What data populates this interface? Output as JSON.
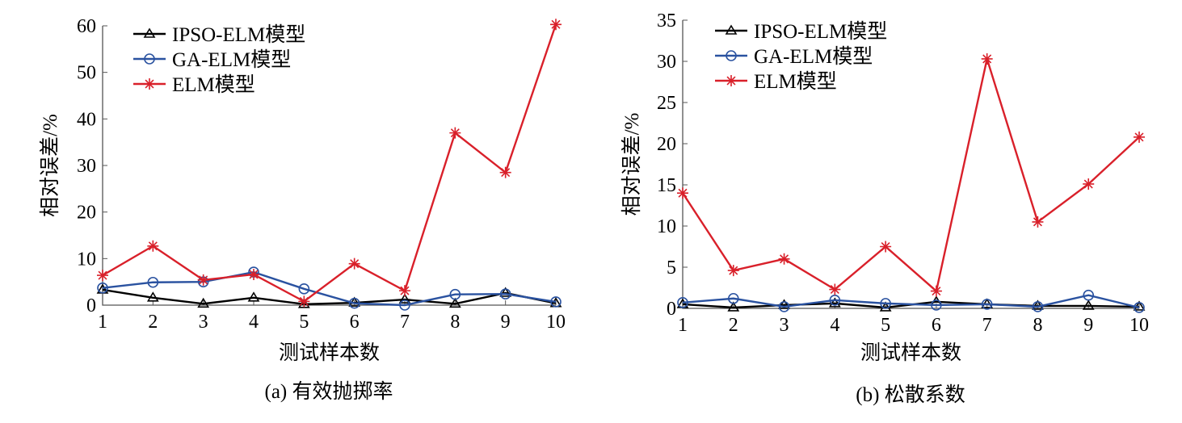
{
  "colors": {
    "IPSO-ELM模型": "#000000",
    "GA-ELM模型": "#2a52a0",
    "ELM模型": "#d9202a"
  },
  "chart_data": [
    {
      "type": "line",
      "caption": "(a)  有效抛掷率",
      "xlabel": "测试样本数",
      "ylabel": "相对误差/%",
      "x": [
        1,
        2,
        3,
        4,
        5,
        6,
        7,
        8,
        9,
        10
      ],
      "xticks": [
        "1",
        "2",
        "3",
        "4",
        "5",
        "6",
        "7",
        "8",
        "9",
        "10"
      ],
      "yticks": [
        "0",
        "10",
        "20",
        "30",
        "40",
        "50",
        "60"
      ],
      "ylim": [
        0,
        60
      ],
      "legend_position": "top-left",
      "series": [
        {
          "name": "IPSO-ELM模型",
          "marker": "triangle",
          "values": [
            3.3,
            1.6,
            0.3,
            1.6,
            0.2,
            0.5,
            1.2,
            0.3,
            2.6,
            0.4
          ]
        },
        {
          "name": "GA-ELM模型",
          "marker": "circle",
          "values": [
            3.7,
            4.9,
            5.0,
            7.1,
            3.5,
            0.4,
            0.0,
            2.3,
            2.4,
            0.7
          ]
        },
        {
          "name": "ELM模型",
          "marker": "star",
          "values": [
            6.4,
            12.7,
            5.4,
            6.6,
            0.8,
            8.9,
            3.1,
            37.0,
            28.5,
            60.3
          ]
        }
      ]
    },
    {
      "type": "line",
      "caption": "(b)  松散系数",
      "xlabel": "测试样本数",
      "ylabel": "相对误差/%",
      "x": [
        1,
        2,
        3,
        4,
        5,
        6,
        7,
        8,
        9,
        10
      ],
      "xticks": [
        "1",
        "2",
        "3",
        "4",
        "5",
        "6",
        "7",
        "8",
        "9",
        "10"
      ],
      "yticks": [
        "0",
        "5",
        "10",
        "15",
        "20",
        "25",
        "30",
        "35"
      ],
      "ylim": [
        0,
        35
      ],
      "legend_position": "top-left",
      "series": [
        {
          "name": "IPSO-ELM模型",
          "marker": "triangle",
          "values": [
            0.5,
            0.1,
            0.4,
            0.6,
            0.1,
            0.8,
            0.5,
            0.3,
            0.3,
            0.2
          ]
        },
        {
          "name": "GA-ELM模型",
          "marker": "circle",
          "values": [
            0.7,
            1.2,
            0.2,
            1.0,
            0.6,
            0.4,
            0.5,
            0.2,
            1.6,
            0.1
          ]
        },
        {
          "name": "ELM模型",
          "marker": "star",
          "values": [
            14.0,
            4.6,
            6.0,
            2.3,
            7.5,
            2.1,
            30.3,
            10.5,
            15.1,
            20.8
          ]
        }
      ]
    }
  ]
}
